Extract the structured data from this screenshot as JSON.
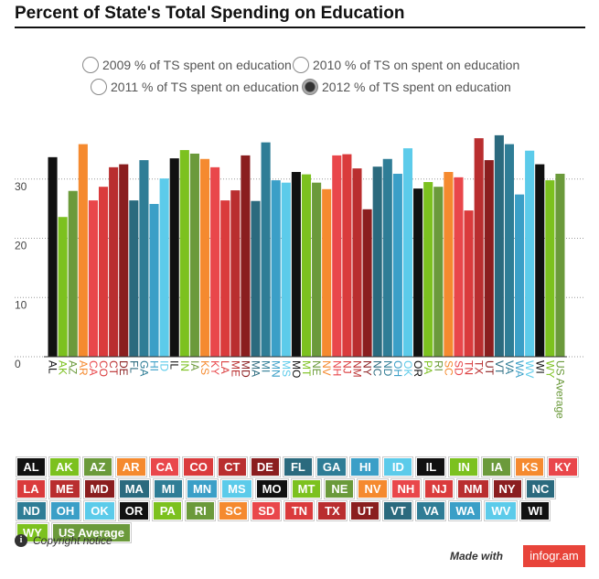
{
  "chart_data": {
    "type": "bar",
    "title": "Percent of State's Total Spending on Education",
    "categories": [
      "AL",
      "AK",
      "AZ",
      "AR",
      "CA",
      "CO",
      "CT",
      "DE",
      "FL",
      "GA",
      "HI",
      "ID",
      "IL",
      "IN",
      "IA",
      "KS",
      "KY",
      "LA",
      "ME",
      "MD",
      "MA",
      "MI",
      "MN",
      "MS",
      "MO",
      "MT",
      "NE",
      "NV",
      "NH",
      "NJ",
      "NM",
      "NY",
      "NC",
      "ND",
      "OH",
      "OK",
      "OR",
      "PA",
      "RI",
      "SC",
      "SD",
      "TN",
      "TX",
      "UT",
      "VT",
      "VA",
      "WA",
      "WV",
      "WI",
      "WY",
      "US Average"
    ],
    "values": [
      33.7,
      23.6,
      28.0,
      35.9,
      26.4,
      28.7,
      32.0,
      32.5,
      26.4,
      33.2,
      25.8,
      30.1,
      33.5,
      34.9,
      34.3,
      33.4,
      32.0,
      26.4,
      28.1,
      34.0,
      26.3,
      36.2,
      29.8,
      29.4,
      31.2,
      30.8,
      29.4,
      28.3,
      34.0,
      34.2,
      31.8,
      24.9,
      32.1,
      33.4,
      30.9,
      35.2,
      28.4,
      29.5,
      28.7,
      31.2,
      30.3,
      24.7,
      36.9,
      33.2,
      37.4,
      35.9,
      27.4,
      34.8,
      32.5,
      29.8,
      30.9
    ],
    "colors": [
      "#111111",
      "#7cc11f",
      "#6b9a3b",
      "#f58a2f",
      "#e9474b",
      "#da3b3c",
      "#b92e2f",
      "#8a1e1f",
      "#2b6a7e",
      "#2f7d96",
      "#3b9fc7",
      "#5ccbea",
      "#111111",
      "#7cc11f",
      "#6b9a3b",
      "#f58a2f",
      "#e9474b",
      "#da3b3c",
      "#b92e2f",
      "#8a1e1f",
      "#2b6a7e",
      "#2f7d96",
      "#3b9fc7",
      "#5ccbea",
      "#111111",
      "#7cc11f",
      "#6b9a3b",
      "#f58a2f",
      "#e9474b",
      "#da3b3c",
      "#b92e2f",
      "#8a1e1f",
      "#2b6a7e",
      "#2f7d96",
      "#3b9fc7",
      "#5ccbea",
      "#111111",
      "#7cc11f",
      "#6b9a3b",
      "#f58a2f",
      "#e9474b",
      "#da3b3c",
      "#b92e2f",
      "#8a1e1f",
      "#2b6a7e",
      "#2f7d96",
      "#3b9fc7",
      "#5ccbea",
      "#111111",
      "#7cc11f",
      "#6b9a3b"
    ],
    "ylim": [
      0,
      38
    ],
    "yticks": [
      0,
      10,
      20,
      30
    ],
    "grid": true
  },
  "controls": {
    "options": [
      "2009 % of TS spent on education",
      "2010 % of TS on spent on education",
      "2011 % of TS spent on education",
      "2012 % of TS spent on education"
    ],
    "selected": 3
  },
  "footer": {
    "copyright": "Copyright notice",
    "made_with": "Made with",
    "brand": "infogr.am"
  }
}
